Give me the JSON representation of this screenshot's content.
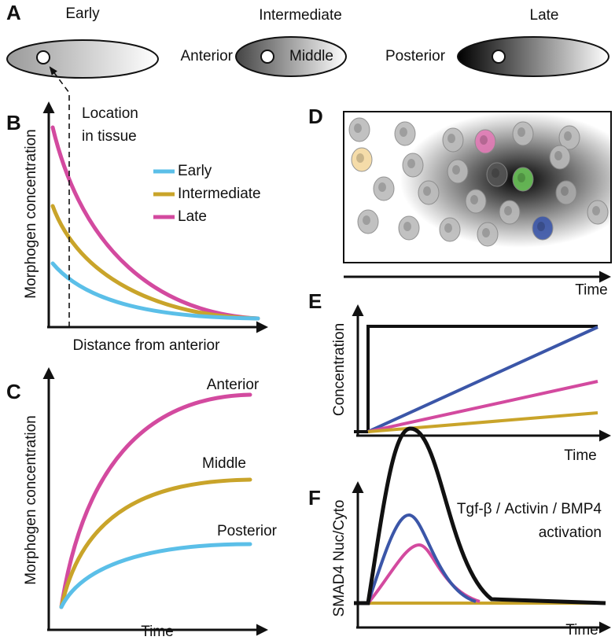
{
  "panels": {
    "A": {
      "label": "A",
      "stages": [
        "Early",
        "Intermediate",
        "Late"
      ],
      "positions": [
        "Anterior",
        "Middle",
        "Posterior"
      ]
    },
    "B": {
      "label": "B",
      "y_label": "Morphogen concentration",
      "x_label": "Distance from anterior",
      "annotation": [
        "Location",
        "in tissue"
      ],
      "legend": [
        "Early",
        "Intermediate",
        "Late"
      ]
    },
    "C": {
      "label": "C",
      "y_label": "Morphogen concentration",
      "x_label": "Time",
      "curve_labels": [
        "Anterior",
        "Middle",
        "Posterior"
      ]
    },
    "D": {
      "label": "D",
      "x_label": "Time"
    },
    "E": {
      "label": "E",
      "y_label": "Concentration",
      "x_label": "Time"
    },
    "F": {
      "label": "F",
      "y_label": "SMAD4 Nuc/Cyto",
      "x_label": "Time",
      "annotation": [
        "Tgf-β / Activin / BMP4",
        "activation"
      ]
    }
  }
}
